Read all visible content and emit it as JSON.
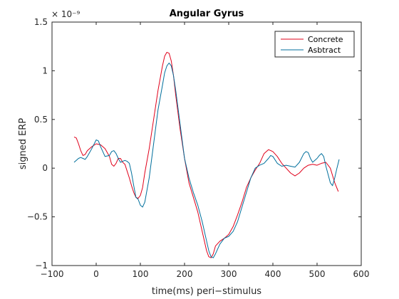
{
  "chart_data": {
    "type": "line",
    "title": "Angular Gyrus",
    "xlabel": "time(ms) peri−stimulus",
    "ylabel": "signed ERP",
    "y_exponent": "× 10⁻⁹",
    "xlim": [
      -100,
      600
    ],
    "ylim": [
      -1.0,
      1.5
    ],
    "xticks": [
      -100,
      0,
      100,
      200,
      300,
      400,
      500,
      600
    ],
    "xtick_labels": [
      "−100",
      "0",
      "100",
      "200",
      "300",
      "400",
      "500",
      "600"
    ],
    "yticks": [
      -1.0,
      -0.5,
      0,
      0.5,
      1.0,
      1.5
    ],
    "ytick_labels": [
      "−1",
      "−0.5",
      "0",
      "0.5",
      "1",
      "1.5"
    ],
    "legend_position": "top-right",
    "grid": false,
    "series": [
      {
        "name": "Concrete",
        "color": "#e0001a",
        "points": [
          [
            -50,
            0.32
          ],
          [
            -45,
            0.31
          ],
          [
            -40,
            0.25
          ],
          [
            -35,
            0.18
          ],
          [
            -30,
            0.13
          ],
          [
            -25,
            0.14
          ],
          [
            -20,
            0.18
          ],
          [
            -10,
            0.22
          ],
          [
            0,
            0.25
          ],
          [
            10,
            0.24
          ],
          [
            20,
            0.2
          ],
          [
            30,
            0.12
          ],
          [
            35,
            0.04
          ],
          [
            40,
            0.02
          ],
          [
            45,
            0.05
          ],
          [
            50,
            0.1
          ],
          [
            55,
            0.1
          ],
          [
            60,
            0.06
          ],
          [
            65,
            0.04
          ],
          [
            70,
            -0.03
          ],
          [
            75,
            -0.1
          ],
          [
            80,
            -0.18
          ],
          [
            85,
            -0.25
          ],
          [
            90,
            -0.3
          ],
          [
            95,
            -0.31
          ],
          [
            100,
            -0.28
          ],
          [
            105,
            -0.2
          ],
          [
            110,
            -0.05
          ],
          [
            120,
            0.2
          ],
          [
            130,
            0.5
          ],
          [
            140,
            0.8
          ],
          [
            150,
            1.05
          ],
          [
            155,
            1.15
          ],
          [
            160,
            1.19
          ],
          [
            165,
            1.18
          ],
          [
            170,
            1.1
          ],
          [
            175,
            0.95
          ],
          [
            180,
            0.75
          ],
          [
            190,
            0.4
          ],
          [
            200,
            0.1
          ],
          [
            210,
            -0.15
          ],
          [
            220,
            -0.3
          ],
          [
            230,
            -0.45
          ],
          [
            240,
            -0.65
          ],
          [
            250,
            -0.85
          ],
          [
            255,
            -0.91
          ],
          [
            260,
            -0.92
          ],
          [
            265,
            -0.88
          ],
          [
            270,
            -0.8
          ],
          [
            280,
            -0.75
          ],
          [
            290,
            -0.72
          ],
          [
            300,
            -0.68
          ],
          [
            310,
            -0.6
          ],
          [
            320,
            -0.48
          ],
          [
            330,
            -0.35
          ],
          [
            340,
            -0.2
          ],
          [
            350,
            -0.1
          ],
          [
            360,
            -0.02
          ],
          [
            370,
            0.05
          ],
          [
            380,
            0.15
          ],
          [
            390,
            0.19
          ],
          [
            400,
            0.17
          ],
          [
            410,
            0.12
          ],
          [
            420,
            0.05
          ],
          [
            430,
            0.0
          ],
          [
            440,
            -0.05
          ],
          [
            450,
            -0.08
          ],
          [
            460,
            -0.05
          ],
          [
            470,
            0.0
          ],
          [
            480,
            0.03
          ],
          [
            490,
            0.04
          ],
          [
            500,
            0.03
          ],
          [
            510,
            0.05
          ],
          [
            520,
            0.06
          ],
          [
            530,
            0.0
          ],
          [
            540,
            -0.15
          ],
          [
            548,
            -0.24
          ]
        ]
      },
      {
        "name": "Asbtract",
        "color": "#006f9c",
        "points": [
          [
            -50,
            0.06
          ],
          [
            -45,
            0.08
          ],
          [
            -40,
            0.1
          ],
          [
            -35,
            0.11
          ],
          [
            -30,
            0.1
          ],
          [
            -25,
            0.09
          ],
          [
            -20,
            0.12
          ],
          [
            -10,
            0.2
          ],
          [
            0,
            0.29
          ],
          [
            5,
            0.28
          ],
          [
            10,
            0.22
          ],
          [
            20,
            0.12
          ],
          [
            30,
            0.13
          ],
          [
            35,
            0.17
          ],
          [
            40,
            0.18
          ],
          [
            45,
            0.15
          ],
          [
            50,
            0.1
          ],
          [
            55,
            0.06
          ],
          [
            60,
            0.07
          ],
          [
            65,
            0.08
          ],
          [
            70,
            0.07
          ],
          [
            75,
            0.05
          ],
          [
            80,
            -0.05
          ],
          [
            85,
            -0.18
          ],
          [
            90,
            -0.3
          ],
          [
            95,
            -0.32
          ],
          [
            100,
            -0.38
          ],
          [
            105,
            -0.4
          ],
          [
            110,
            -0.35
          ],
          [
            120,
            -0.1
          ],
          [
            130,
            0.25
          ],
          [
            140,
            0.6
          ],
          [
            150,
            0.85
          ],
          [
            155,
            0.98
          ],
          [
            160,
            1.05
          ],
          [
            165,
            1.08
          ],
          [
            170,
            1.05
          ],
          [
            175,
            0.95
          ],
          [
            180,
            0.8
          ],
          [
            190,
            0.45
          ],
          [
            200,
            0.1
          ],
          [
            210,
            -0.1
          ],
          [
            220,
            -0.25
          ],
          [
            230,
            -0.38
          ],
          [
            240,
            -0.55
          ],
          [
            250,
            -0.75
          ],
          [
            255,
            -0.85
          ],
          [
            260,
            -0.91
          ],
          [
            265,
            -0.92
          ],
          [
            270,
            -0.88
          ],
          [
            280,
            -0.78
          ],
          [
            290,
            -0.72
          ],
          [
            300,
            -0.7
          ],
          [
            310,
            -0.65
          ],
          [
            320,
            -0.55
          ],
          [
            330,
            -0.4
          ],
          [
            340,
            -0.25
          ],
          [
            350,
            -0.1
          ],
          [
            360,
            0.0
          ],
          [
            370,
            0.03
          ],
          [
            380,
            0.05
          ],
          [
            390,
            0.1
          ],
          [
            395,
            0.13
          ],
          [
            400,
            0.12
          ],
          [
            410,
            0.05
          ],
          [
            420,
            0.02
          ],
          [
            430,
            0.03
          ],
          [
            440,
            0.02
          ],
          [
            450,
            0.01
          ],
          [
            460,
            0.06
          ],
          [
            470,
            0.15
          ],
          [
            475,
            0.17
          ],
          [
            480,
            0.16
          ],
          [
            485,
            0.1
          ],
          [
            490,
            0.06
          ],
          [
            500,
            0.1
          ],
          [
            505,
            0.13
          ],
          [
            510,
            0.15
          ],
          [
            515,
            0.12
          ],
          [
            520,
            0.02
          ],
          [
            530,
            -0.15
          ],
          [
            535,
            -0.18
          ],
          [
            540,
            -0.1
          ],
          [
            545,
            0.0
          ],
          [
            550,
            0.09
          ]
        ]
      }
    ]
  }
}
